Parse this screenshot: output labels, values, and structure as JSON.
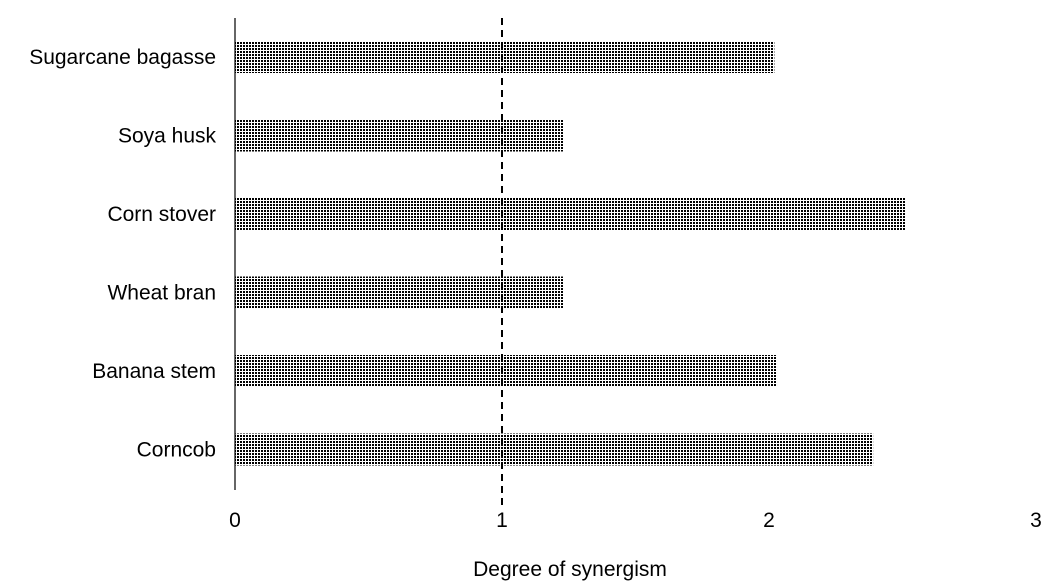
{
  "chart_data": {
    "type": "bar",
    "orientation": "horizontal",
    "categories": [
      "Sugarcane bagasse",
      "Soya husk",
      "Corn stover",
      "Wheat bran",
      "Banana stem",
      "Corncob"
    ],
    "values": [
      2.02,
      1.23,
      2.51,
      1.23,
      2.03,
      2.39
    ],
    "xlabel": "Degree of synergism",
    "ylabel": "",
    "xlim": [
      0,
      3
    ],
    "xticks": [
      "0",
      "1",
      "2",
      "3"
    ],
    "reference_line": {
      "x": 1,
      "style": "dashed"
    },
    "grid": false,
    "legend": "none",
    "bar_fill": "dotted-pattern",
    "colors": {
      "bar_dots": "#000000",
      "bar_bg": "#ffffff",
      "axis": "#000000"
    }
  }
}
